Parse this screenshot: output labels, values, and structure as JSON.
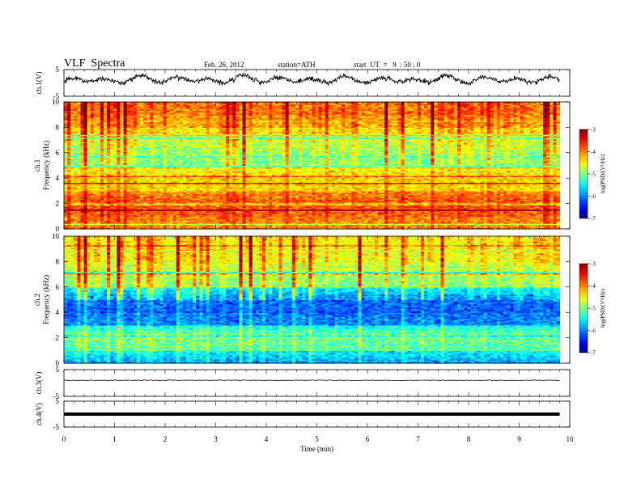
{
  "header": {
    "title": "VLF  Spectra",
    "date": "Feb. 26, 2012",
    "station": "station=ATH",
    "start_time": "start  UT  =   9  : 50 : 0"
  },
  "chart_data": [
    {
      "type": "line",
      "name": "ch1-waveform",
      "ylabel": "ch.1(V)",
      "ylim": [
        -5,
        5
      ],
      "y_ticks": [
        5,
        -5
      ],
      "x": [
        0.0,
        0.5,
        1.0,
        1.5,
        2.0,
        2.5,
        3.0,
        3.5,
        4.0,
        4.5,
        5.0,
        5.5,
        6.0,
        6.5,
        7.0,
        7.5,
        8.0,
        8.5,
        9.0,
        9.5,
        9.8
      ],
      "y": [
        0.5,
        1.6,
        0.3,
        2.0,
        0.8,
        1.8,
        0.2,
        2.2,
        0.9,
        1.5,
        0.4,
        1.9,
        0.7,
        1.6,
        0.3,
        2.1,
        0.6,
        1.8,
        0.5,
        1.4,
        0.9
      ],
      "xlim": [
        0,
        10
      ]
    },
    {
      "type": "heatmap",
      "name": "ch1-spectrogram",
      "ylabel_channel": "ch.1",
      "ylabel": "Frequency  (kHz)",
      "ylim": [
        0,
        10
      ],
      "y_ticks": [
        0,
        2,
        4,
        6,
        8,
        10
      ],
      "xlim": [
        0,
        10
      ],
      "data_extent_min": 9.8,
      "colorbar": {
        "label": "log(PSD/(V²/Hz)",
        "range": [
          -7,
          -3
        ],
        "ticks": [
          -3,
          -4,
          -5,
          -6,
          -7
        ]
      },
      "freq_bands_khz": [
        0,
        1,
        2,
        3,
        4,
        5,
        6,
        7,
        8,
        9,
        10
      ],
      "band_mean_log_psd": [
        -4.1,
        -3.9,
        -3.8,
        -4.4,
        -4.3,
        -5.0,
        -4.9,
        -4.6,
        -4.2,
        -4.0
      ]
    },
    {
      "type": "heatmap",
      "name": "ch2-spectrogram",
      "ylabel_channel": "ch.2",
      "ylabel": "Frequency  (kHz)",
      "ylim": [
        0,
        10
      ],
      "y_ticks": [
        0,
        2,
        4,
        6,
        8,
        10
      ],
      "xlim": [
        0,
        10
      ],
      "data_extent_min": 9.8,
      "colorbar": {
        "label": "log(PSD/(V²/Hz)",
        "range": [
          -7,
          -3
        ],
        "ticks": [
          -3,
          -4,
          -5,
          -6,
          -7
        ]
      },
      "freq_bands_khz": [
        0,
        1,
        2,
        3,
        4,
        5,
        6,
        7,
        8,
        9,
        10
      ],
      "band_mean_log_psd": [
        -5.9,
        -5.2,
        -5.0,
        -6.0,
        -6.2,
        -6.0,
        -5.0,
        -4.8,
        -4.6,
        -4.5
      ]
    },
    {
      "type": "line",
      "name": "ch3-waveform",
      "ylabel": "ch.3(V)",
      "ylim": [
        -5,
        5
      ],
      "y_ticks": [
        5,
        -5
      ],
      "x": [
        0,
        9.8
      ],
      "y": [
        1.0,
        1.0
      ],
      "xlim": [
        0,
        10
      ]
    },
    {
      "type": "line",
      "name": "ch4-waveform",
      "ylabel": "ch.4(V)",
      "ylim": [
        -5,
        5
      ],
      "y_ticks": [
        5,
        -5
      ],
      "x": [
        0,
        9.8
      ],
      "y": [
        0.0,
        0.0
      ],
      "xlim": [
        0,
        10
      ],
      "xlabel": "Time  (min)",
      "x_ticks": [
        0,
        1,
        2,
        3,
        4,
        5,
        6,
        7,
        8,
        9,
        10
      ]
    }
  ]
}
